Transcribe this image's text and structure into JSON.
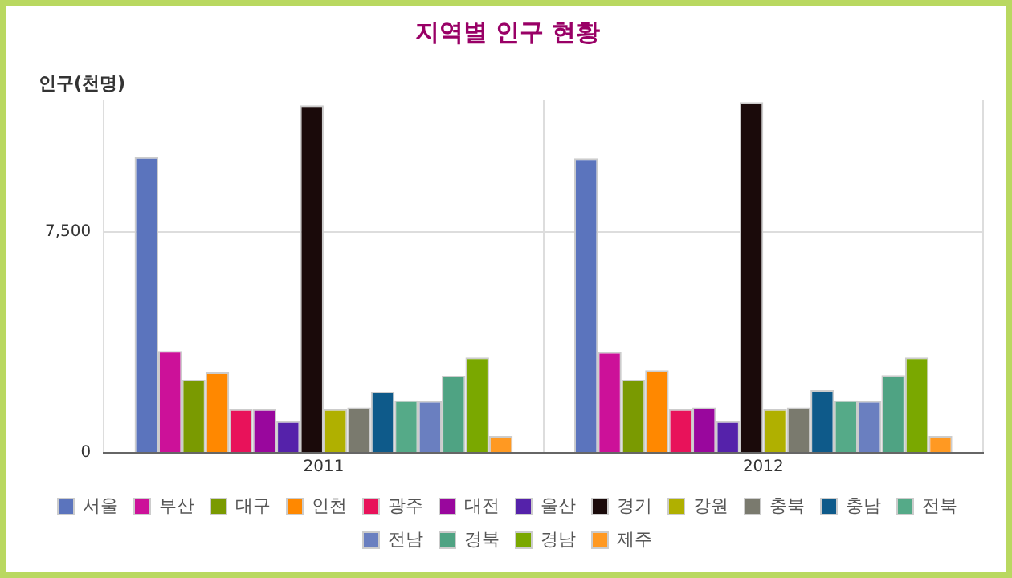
{
  "chart_data": {
    "type": "bar",
    "title": "지역별 인구 현황",
    "ylabel": "인구(천명)",
    "categories": [
      "2011",
      "2012"
    ],
    "ylim": [
      0,
      12000
    ],
    "yticks": [
      0,
      {
        "value": 7500,
        "label": "7,500"
      }
    ],
    "grid": true,
    "legend": "bottom",
    "series": [
      {
        "name": "서울",
        "color": "#5b74bd",
        "values": [
          10040,
          10000
        ]
      },
      {
        "name": "부산",
        "color": "#cc1199",
        "values": [
          3460,
          3420
        ]
      },
      {
        "name": "대구",
        "color": "#7a9a01",
        "values": [
          2480,
          2480
        ]
      },
      {
        "name": "인천",
        "color": "#ff8800",
        "values": [
          2730,
          2800
        ]
      },
      {
        "name": "광주",
        "color": "#e8125a",
        "values": [
          1480,
          1480
        ]
      },
      {
        "name": "대전",
        "color": "#99079d",
        "values": [
          1480,
          1540
        ]
      },
      {
        "name": "울산",
        "color": "#5522aa",
        "values": [
          1070,
          1070
        ]
      },
      {
        "name": "경기",
        "color": "#1a0a0a",
        "values": [
          11800,
          11910
        ]
      },
      {
        "name": "강원",
        "color": "#b0b000",
        "values": [
          1480,
          1480
        ]
      },
      {
        "name": "충북",
        "color": "#7a7a6e",
        "values": [
          1540,
          1540
        ]
      },
      {
        "name": "충남",
        "color": "#0e5a8a",
        "values": [
          2070,
          2130
        ]
      },
      {
        "name": "전북",
        "color": "#55aa88",
        "values": [
          1780,
          1780
        ]
      },
      {
        "name": "전남",
        "color": "#6a7fc0",
        "values": [
          1760,
          1760
        ]
      },
      {
        "name": "경북",
        "color": "#4fa383",
        "values": [
          2620,
          2640
        ]
      },
      {
        "name": "경남",
        "color": "#7aa800",
        "values": [
          3240,
          3240
        ]
      },
      {
        "name": "제주",
        "color": "#ff9922",
        "values": [
          570,
          570
        ]
      }
    ]
  }
}
